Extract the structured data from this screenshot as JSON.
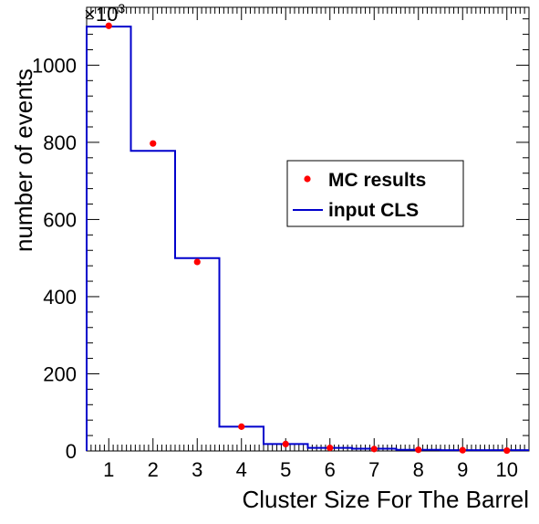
{
  "chart_data": {
    "type": "scatter",
    "title": "",
    "xlabel": "Cluster Size For The Barrel",
    "ylabel": "number of events",
    "y_multiplier_label": "×10",
    "y_multiplier_exponent": "3",
    "xlim": [
      0.5,
      10.5
    ],
    "ylim": [
      0,
      1150
    ],
    "x_ticks": [
      1,
      2,
      3,
      4,
      5,
      6,
      7,
      8,
      9,
      10
    ],
    "x_tick_labels": [
      "1",
      "2",
      "3",
      "4",
      "5",
      "6",
      "7",
      "8",
      "9",
      "10"
    ],
    "y_ticks": [
      0,
      200,
      400,
      600,
      800,
      1000
    ],
    "y_tick_labels": [
      "0",
      "200",
      "400",
      "600",
      "800",
      "1000"
    ],
    "grid": false,
    "legend_position": "center-right",
    "series": [
      {
        "name": "MC results",
        "kind": "markers",
        "color": "#ff0000",
        "x": [
          1,
          2,
          3,
          4,
          5,
          6,
          7,
          8,
          9,
          10
        ],
        "y": [
          1102,
          797,
          490,
          63,
          18,
          8,
          5,
          3,
          2,
          1
        ]
      },
      {
        "name": "input CLS",
        "kind": "step-histogram",
        "color": "#0000cc",
        "x": [
          1,
          2,
          3,
          4,
          5,
          6,
          7,
          8,
          9,
          10
        ],
        "y": [
          1100,
          778,
          500,
          63,
          18,
          8,
          6,
          3,
          2,
          2
        ]
      }
    ]
  }
}
